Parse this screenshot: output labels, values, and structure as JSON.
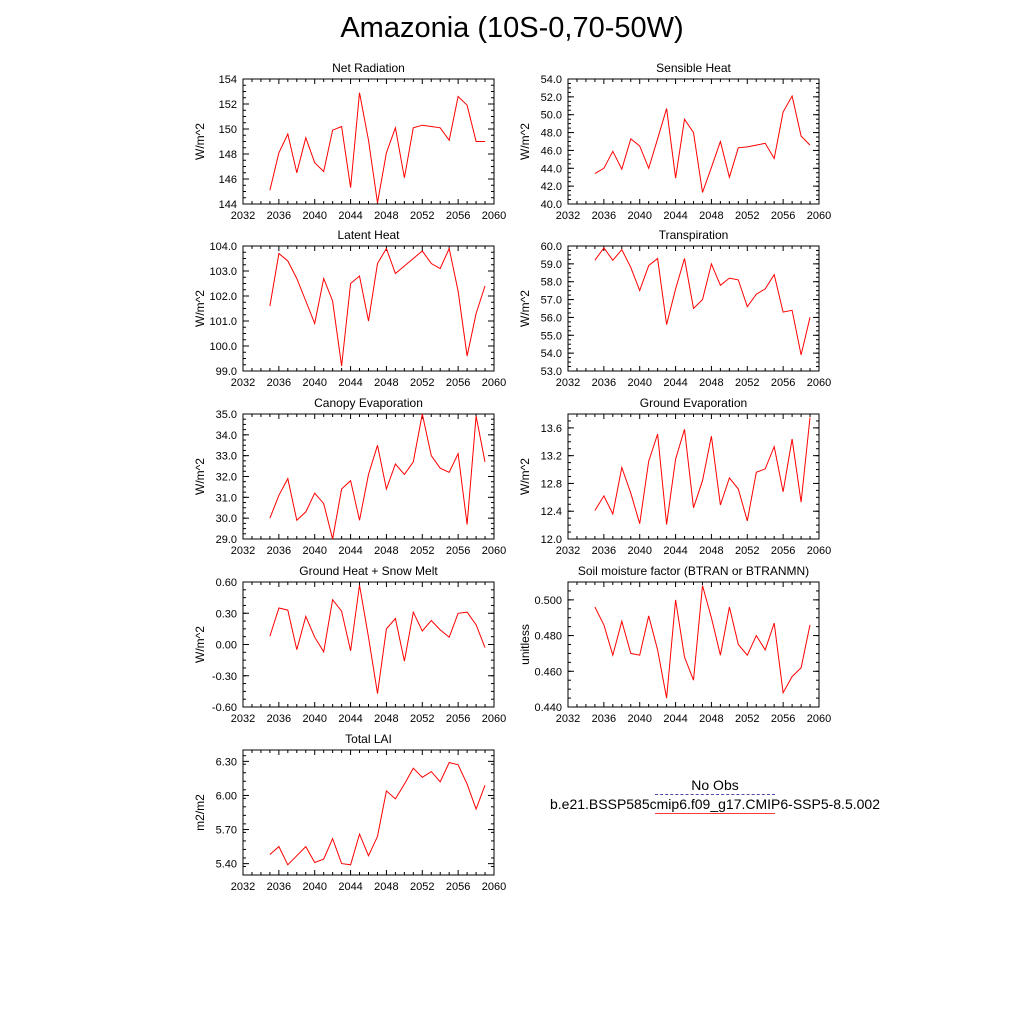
{
  "title": "Amazonia (10S-0,70-50W)",
  "legend": {
    "obs_label": "No Obs",
    "case_label": "b.e21.BSSP585cmip6.f09_g17.CMIP6-SSP5-8.5.002",
    "obs_color": "#4a4aa8",
    "case_color": "#ff0000"
  },
  "chart_data": [
    {
      "type": "line",
      "title": "Net Radiation",
      "ylabel": "W/m^2",
      "xlim": [
        2032,
        2060
      ],
      "ylim": [
        144,
        154
      ],
      "xticks": [
        2032,
        2036,
        2040,
        2044,
        2048,
        2052,
        2056,
        2060
      ],
      "yticks": [
        "144",
        "146",
        "148",
        "150",
        "152",
        "154"
      ],
      "series": [
        {
          "color": "#ff0000",
          "x": [
            2035,
            2036,
            2037,
            2038,
            2039,
            2040,
            2041,
            2042,
            2043,
            2044,
            2045,
            2046,
            2047,
            2048,
            2049,
            2050,
            2051,
            2052,
            2053,
            2054,
            2055,
            2056,
            2057,
            2058,
            2059
          ],
          "y": [
            145.1,
            148.1,
            149.6,
            146.5,
            149.3,
            147.3,
            146.6,
            149.9,
            150.2,
            145.3,
            152.9,
            149.1,
            144.1,
            148.1,
            150.1,
            146.1,
            150.1,
            150.3,
            150.2,
            150.1,
            149.1,
            152.6,
            151.9,
            149.0,
            149.0
          ]
        }
      ]
    },
    {
      "type": "line",
      "title": "Sensible Heat",
      "ylabel": "W/m^2",
      "xlim": [
        2032,
        2060
      ],
      "ylim": [
        40,
        54
      ],
      "xticks": [
        2032,
        2036,
        2040,
        2044,
        2048,
        2052,
        2056,
        2060
      ],
      "yticks": [
        "40.0",
        "42.0",
        "44.0",
        "46.0",
        "48.0",
        "50.0",
        "52.0",
        "54.0"
      ],
      "series": [
        {
          "color": "#ff0000",
          "x": [
            2035,
            2036,
            2037,
            2038,
            2039,
            2040,
            2041,
            2042,
            2043,
            2044,
            2045,
            2046,
            2047,
            2048,
            2049,
            2050,
            2051,
            2052,
            2053,
            2054,
            2055,
            2056,
            2057,
            2058,
            2059
          ],
          "y": [
            43.4,
            44.0,
            45.9,
            43.9,
            47.3,
            46.5,
            44.0,
            47.3,
            50.7,
            42.9,
            49.5,
            48.0,
            41.3,
            44.1,
            47.0,
            43.0,
            46.3,
            46.4,
            46.6,
            46.8,
            45.1,
            50.3,
            52.1,
            47.6,
            46.6
          ]
        }
      ]
    },
    {
      "type": "line",
      "title": "Latent Heat",
      "ylabel": "W/m^2",
      "xlim": [
        2032,
        2060
      ],
      "ylim": [
        99,
        104
      ],
      "xticks": [
        2032,
        2036,
        2040,
        2044,
        2048,
        2052,
        2056,
        2060
      ],
      "yticks": [
        "99.0",
        "100.0",
        "101.0",
        "102.0",
        "103.0",
        "104.0"
      ],
      "series": [
        {
          "color": "#ff0000",
          "x": [
            2035,
            2036,
            2037,
            2038,
            2039,
            2040,
            2041,
            2042,
            2043,
            2044,
            2045,
            2046,
            2047,
            2048,
            2049,
            2050,
            2051,
            2052,
            2053,
            2054,
            2055,
            2056,
            2057,
            2058,
            2059
          ],
          "y": [
            101.6,
            103.7,
            103.4,
            102.7,
            101.8,
            100.9,
            102.7,
            101.8,
            99.2,
            102.5,
            102.8,
            101.0,
            103.3,
            103.9,
            102.9,
            103.2,
            103.5,
            103.8,
            103.3,
            103.1,
            103.9,
            102.2,
            99.6,
            101.3,
            102.4
          ]
        }
      ]
    },
    {
      "type": "line",
      "title": "Transpiration",
      "ylabel": "W/m^2",
      "xlim": [
        2032,
        2060
      ],
      "ylim": [
        53,
        60
      ],
      "xticks": [
        2032,
        2036,
        2040,
        2044,
        2048,
        2052,
        2056,
        2060
      ],
      "yticks": [
        "53.0",
        "54.0",
        "55.0",
        "56.0",
        "57.0",
        "58.0",
        "59.0",
        "60.0"
      ],
      "series": [
        {
          "color": "#ff0000",
          "x": [
            2035,
            2036,
            2037,
            2038,
            2039,
            2040,
            2041,
            2042,
            2043,
            2044,
            2045,
            2046,
            2047,
            2048,
            2049,
            2050,
            2051,
            2052,
            2053,
            2054,
            2055,
            2056,
            2057,
            2058,
            2059
          ],
          "y": [
            59.2,
            59.9,
            59.2,
            59.8,
            58.8,
            57.5,
            58.9,
            59.3,
            55.6,
            57.6,
            59.3,
            56.5,
            57.0,
            59.0,
            57.8,
            58.2,
            58.1,
            56.6,
            57.3,
            57.6,
            58.4,
            56.3,
            56.4,
            53.9,
            56.0
          ]
        }
      ]
    },
    {
      "type": "line",
      "title": "Canopy Evaporation",
      "ylabel": "W/m^2",
      "xlim": [
        2032,
        2060
      ],
      "ylim": [
        29,
        35
      ],
      "xticks": [
        2032,
        2036,
        2040,
        2044,
        2048,
        2052,
        2056,
        2060
      ],
      "yticks": [
        "29.0",
        "30.0",
        "31.0",
        "32.0",
        "33.0",
        "34.0",
        "35.0"
      ],
      "series": [
        {
          "color": "#ff0000",
          "x": [
            2035,
            2036,
            2037,
            2038,
            2039,
            2040,
            2041,
            2042,
            2043,
            2044,
            2045,
            2046,
            2047,
            2048,
            2049,
            2050,
            2051,
            2052,
            2053,
            2054,
            2055,
            2056,
            2057,
            2058,
            2059
          ],
          "y": [
            30.0,
            31.1,
            31.9,
            29.9,
            30.3,
            31.2,
            30.7,
            29.0,
            31.4,
            31.8,
            29.9,
            32.1,
            33.5,
            31.4,
            32.6,
            32.1,
            32.7,
            35.0,
            33.0,
            32.4,
            32.2,
            33.1,
            29.7,
            34.9,
            32.7
          ]
        }
      ]
    },
    {
      "type": "line",
      "title": "Ground Evaporation",
      "ylabel": "W/m^2",
      "xlim": [
        2032,
        2060
      ],
      "ylim": [
        12.0,
        13.8
      ],
      "xticks": [
        2032,
        2036,
        2040,
        2044,
        2048,
        2052,
        2056,
        2060
      ],
      "yticks": [
        "12.0",
        "12.4",
        "12.8",
        "13.2",
        "13.6"
      ],
      "series": [
        {
          "color": "#ff0000",
          "x": [
            2035,
            2036,
            2037,
            2038,
            2039,
            2040,
            2041,
            2042,
            2043,
            2044,
            2045,
            2046,
            2047,
            2048,
            2049,
            2050,
            2051,
            2052,
            2053,
            2054,
            2055,
            2056,
            2057,
            2058,
            2059
          ],
          "y": [
            12.41,
            12.62,
            12.36,
            13.03,
            12.66,
            12.22,
            13.12,
            13.51,
            12.21,
            13.15,
            13.58,
            12.45,
            12.84,
            13.48,
            12.49,
            12.88,
            12.72,
            12.26,
            12.96,
            13.01,
            13.33,
            12.68,
            13.44,
            12.53,
            13.75
          ]
        }
      ]
    },
    {
      "type": "line",
      "title": "Ground Heat + Snow Melt",
      "ylabel": "W/m^2",
      "xlim": [
        2032,
        2060
      ],
      "ylim": [
        -0.6,
        0.6
      ],
      "xticks": [
        2032,
        2036,
        2040,
        2044,
        2048,
        2052,
        2056,
        2060
      ],
      "yticks": [
        "-0.60",
        "-0.30",
        "0.00",
        "0.30",
        "0.60"
      ],
      "series": [
        {
          "color": "#ff0000",
          "x": [
            2035,
            2036,
            2037,
            2038,
            2039,
            2040,
            2041,
            2042,
            2043,
            2044,
            2045,
            2046,
            2047,
            2048,
            2049,
            2050,
            2051,
            2052,
            2053,
            2054,
            2055,
            2056,
            2057,
            2058,
            2059
          ],
          "y": [
            0.08,
            0.35,
            0.33,
            -0.05,
            0.27,
            0.07,
            -0.07,
            0.43,
            0.32,
            -0.06,
            0.57,
            0.07,
            -0.47,
            0.15,
            0.25,
            -0.16,
            0.31,
            0.13,
            0.23,
            0.14,
            0.07,
            0.3,
            0.31,
            0.19,
            -0.03
          ]
        }
      ]
    },
    {
      "type": "line",
      "title": "Soil moisture factor (BTRAN or BTRANMN)",
      "ylabel": "unitless",
      "xlim": [
        2032,
        2060
      ],
      "ylim": [
        0.44,
        0.51
      ],
      "xticks": [
        2032,
        2036,
        2040,
        2044,
        2048,
        2052,
        2056,
        2060
      ],
      "yticks": [
        "0.440",
        "0.460",
        "0.480",
        "0.500"
      ],
      "series": [
        {
          "color": "#ff0000",
          "x": [
            2035,
            2036,
            2037,
            2038,
            2039,
            2040,
            2041,
            2042,
            2043,
            2044,
            2045,
            2046,
            2047,
            2048,
            2049,
            2050,
            2051,
            2052,
            2053,
            2054,
            2055,
            2056,
            2057,
            2058,
            2059
          ],
          "y": [
            0.496,
            0.486,
            0.469,
            0.488,
            0.47,
            0.469,
            0.491,
            0.472,
            0.445,
            0.5,
            0.468,
            0.455,
            0.508,
            0.49,
            0.469,
            0.496,
            0.475,
            0.469,
            0.48,
            0.472,
            0.487,
            0.448,
            0.457,
            0.462,
            0.486
          ]
        }
      ]
    },
    {
      "type": "line",
      "title": "Total LAI",
      "ylabel": "m2/m2",
      "xlim": [
        2032,
        2060
      ],
      "ylim": [
        5.3,
        6.4
      ],
      "xticks": [
        2032,
        2036,
        2040,
        2044,
        2048,
        2052,
        2056,
        2060
      ],
      "yticks": [
        "5.40",
        "5.70",
        "6.00",
        "6.30"
      ],
      "series": [
        {
          "color": "#ff0000",
          "x": [
            2035,
            2036,
            2037,
            2038,
            2039,
            2040,
            2041,
            2042,
            2043,
            2044,
            2045,
            2046,
            2047,
            2048,
            2049,
            2050,
            2051,
            2052,
            2053,
            2054,
            2055,
            2056,
            2057,
            2058,
            2059
          ],
          "y": [
            5.48,
            5.55,
            5.39,
            5.47,
            5.55,
            5.41,
            5.44,
            5.62,
            5.4,
            5.39,
            5.66,
            5.47,
            5.64,
            6.04,
            5.97,
            6.1,
            6.24,
            6.16,
            6.21,
            6.12,
            6.29,
            6.27,
            6.1,
            5.88,
            6.09
          ]
        }
      ]
    }
  ]
}
